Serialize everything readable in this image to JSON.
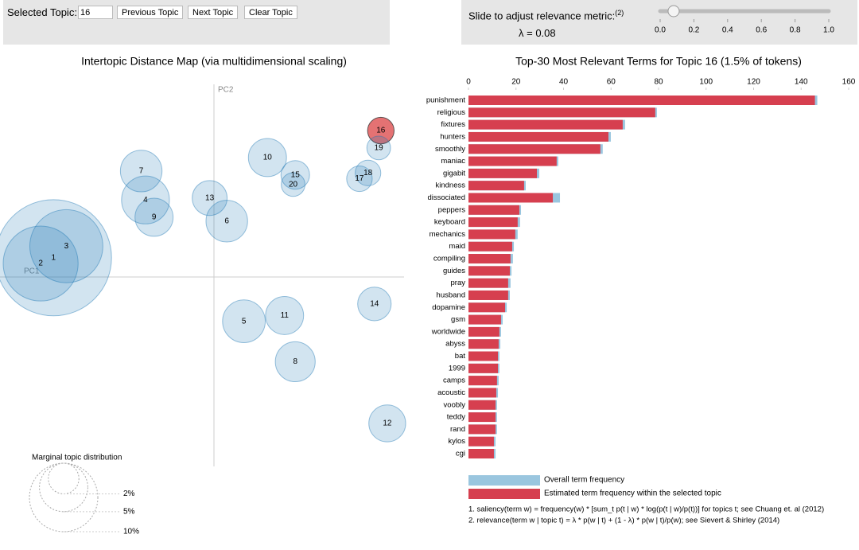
{
  "controls": {
    "topic_label": "Selected Topic:",
    "topic_value": "16",
    "buttons": [
      "Previous Topic",
      "Next Topic",
      "Clear Topic"
    ],
    "slider_label": "Slide to adjust relevance metric:",
    "slider_note": "(2)",
    "lambda_text": "λ = 0.08",
    "lambda": 0.08,
    "slider_range": [
      0,
      1
    ],
    "slider_ticks": [
      {
        "value": 0,
        "label": "0.0"
      },
      {
        "value": 0.2,
        "label": "0.2"
      },
      {
        "value": 0.4,
        "label": "0.4"
      },
      {
        "value": 0.6,
        "label": "0.6"
      },
      {
        "value": 0.8,
        "label": "0.8"
      },
      {
        "value": 1,
        "label": "1.0"
      }
    ]
  },
  "chart_data": [
    {
      "type": "scatter",
      "title": "Intertopic Distance Map (via multidimensional scaling)",
      "x_label": "PC1",
      "y_label": "PC2",
      "xlim": [
        -1,
        1
      ],
      "ylim": [
        -1,
        1
      ],
      "labels": [
        "1",
        "2",
        "3",
        "4",
        "5",
        "6",
        "7",
        "8",
        "9",
        "10",
        "11",
        "12",
        "13",
        "14",
        "15",
        "16",
        "17",
        "18",
        "19",
        "20"
      ],
      "x": [
        -0.75,
        -0.81,
        -0.69,
        -0.32,
        0.14,
        0.06,
        -0.34,
        0.38,
        -0.28,
        0.25,
        0.33,
        0.81,
        -0.02,
        0.75,
        0.38,
        0.78,
        0.68,
        0.72,
        0.77,
        0.37
      ],
      "y": [
        0.1,
        0.07,
        0.16,
        0.4,
        -0.23,
        0.29,
        0.55,
        -0.44,
        0.31,
        0.62,
        -0.2,
        -0.76,
        0.41,
        -0.14,
        0.53,
        0.76,
        0.51,
        0.54,
        0.67,
        0.48
      ],
      "sizes": [
        28.8,
        12,
        11.4,
        4.9,
        3.9,
        3.7,
        3.7,
        3.4,
        3.1,
        3.1,
        3.1,
        2.9,
        2.6,
        2.4,
        1.75,
        1.5,
        1.4,
        1.4,
        1.2,
        1.2
      ],
      "color": "#1f77b4",
      "highlight_color": "#d62728",
      "size_legend": {
        "title": "Marginal topic distribution",
        "sizes": [
          {
            "value": 2,
            "label": "2%"
          },
          {
            "value": 5,
            "label": "5%"
          },
          {
            "value": 10,
            "label": "10%"
          }
        ]
      }
    },
    {
      "type": "bar",
      "title": "Top-30 Most Relevant Terms for Topic 16 (1.5% of tokens)",
      "categories": [
        "punishment",
        "religious",
        "fixtures",
        "hunters",
        "smoothly",
        "maniac",
        "gigabit",
        "kindness",
        "dissociated",
        "peppers",
        "keyboard",
        "mechanics",
        "maid",
        "compiling",
        "guides",
        "pray",
        "husband",
        "dopamine",
        "gsm",
        "worldwide",
        "abyss",
        "bat",
        "1999",
        "camps",
        "acoustic",
        "voobly",
        "teddy",
        "rand",
        "kylos",
        "cgi"
      ],
      "series": [
        {
          "name": "Overall term frequency",
          "color": "#9ac6df",
          "values": [
            146.8,
            79.3,
            65.9,
            59.9,
            56.5,
            37.8,
            29.8,
            24.1,
            38.5,
            22.1,
            21.7,
            20.7,
            19.1,
            18.7,
            18.1,
            17.7,
            17.4,
            16.1,
            14.4,
            13.7,
            13.4,
            13.0,
            13.0,
            12.7,
            12.4,
            12.0,
            12.0,
            12.0,
            11.4,
            11.4
          ]
        },
        {
          "name": "Estimated term frequency within the selected topic",
          "color": "#d63f4f",
          "values": [
            145.8,
            78.6,
            64.9,
            58.9,
            55.5,
            37.1,
            28.8,
            23.4,
            35.5,
            21.4,
            20.7,
            19.7,
            18.4,
            17.7,
            17.4,
            16.7,
            16.7,
            15.4,
            13.7,
            13.0,
            12.7,
            12.4,
            12.4,
            12.0,
            11.7,
            11.4,
            11.4,
            11.4,
            10.7,
            10.7
          ]
        }
      ],
      "xlim": [
        0,
        160
      ],
      "xticks": [
        0,
        20,
        40,
        60,
        80,
        100,
        120,
        140,
        160
      ]
    }
  ],
  "footnotes": [
    "1. saliency(term w) = frequency(w) * [sum_t p(t | w) * log(p(t | w)/p(t))] for topics t; see Chuang et. al (2012)",
    "2. relevance(term w | topic t) = λ * p(w | t) + (1 - λ) * p(w | t)/p(w); see Sievert & Shirley (2014)"
  ]
}
